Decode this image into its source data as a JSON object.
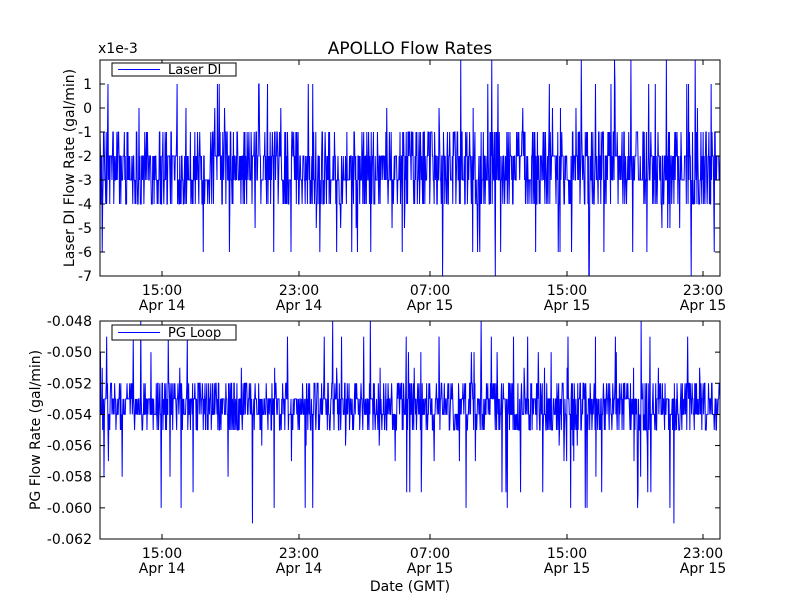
{
  "figure": {
    "title": "APOLLO Flow Rates",
    "xlabel": "Date (GMT)"
  },
  "chart_data": [
    {
      "type": "line",
      "title": "APOLLO Flow Rates",
      "xlabel": "",
      "ylabel": "Laser DI Flow Rate (gal/min)",
      "y_multiplier_label": "x1e-3",
      "ylim": [
        -7,
        2
      ],
      "yticks": [
        1,
        0,
        -1,
        -2,
        -3,
        -4,
        -5,
        -6,
        -7
      ],
      "ytick_labels": [
        "1",
        "0",
        "-1",
        "-2",
        "-3",
        "-4",
        "-5",
        "-6",
        "-7"
      ],
      "xlim": [
        "Apr 14 10:40",
        "Apr 15 23:40"
      ],
      "xticks": [
        {
          "time": "15:00",
          "date": "Apr 14"
        },
        {
          "time": "23:00",
          "date": "Apr 14"
        },
        {
          "time": "07:00",
          "date": "Apr 15"
        },
        {
          "time": "15:00",
          "date": "Apr 15"
        },
        {
          "time": "23:00",
          "date": "Apr 15"
        }
      ],
      "legend": {
        "label": "Laser DI",
        "location": "upper-left"
      },
      "color": "#0000ff",
      "series": [
        {
          "name": "Laser DI",
          "typical_range": [
            -4,
            -1
          ],
          "baseline": -2.5,
          "min": -7,
          "max": 2,
          "quantization": 1
        }
      ]
    },
    {
      "type": "line",
      "xlabel": "Date (GMT)",
      "ylabel": "PG Flow Rate (gal/min)",
      "ylim": [
        -0.062,
        -0.048
      ],
      "yticks": [
        -0.048,
        -0.05,
        -0.052,
        -0.054,
        -0.056,
        -0.058,
        -0.06,
        -0.062
      ],
      "ytick_labels": [
        "-0.048",
        "-0.050",
        "-0.052",
        "-0.054",
        "-0.056",
        "-0.058",
        "-0.060",
        "-0.062"
      ],
      "xlim": [
        "Apr 14 10:40",
        "Apr 15 23:40"
      ],
      "xticks": [
        {
          "time": "15:00",
          "date": "Apr 14"
        },
        {
          "time": "23:00",
          "date": "Apr 14"
        },
        {
          "time": "07:00",
          "date": "Apr 15"
        },
        {
          "time": "15:00",
          "date": "Apr 15"
        },
        {
          "time": "23:00",
          "date": "Apr 15"
        }
      ],
      "legend": {
        "label": "PG Loop",
        "location": "upper-left"
      },
      "color": "#0000ff",
      "series": [
        {
          "name": "PG Loop",
          "typical_range": [
            -0.055,
            -0.052
          ],
          "baseline": -0.0535,
          "min": -0.0612,
          "max": -0.048,
          "quantization": 0.001
        }
      ]
    }
  ]
}
